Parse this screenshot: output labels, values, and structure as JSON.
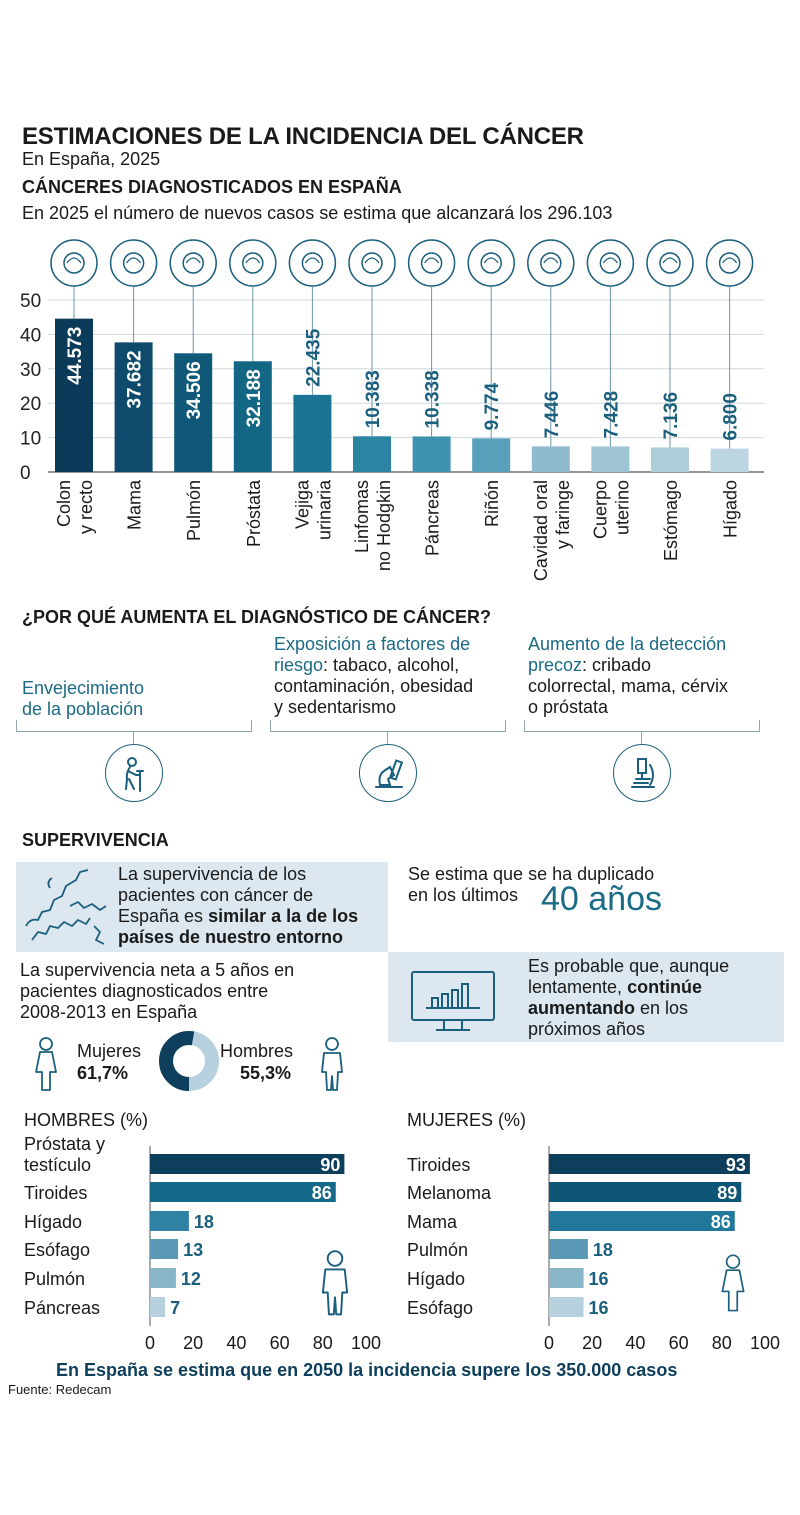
{
  "header": {
    "title": "ESTIMACIONES DE LA INCIDENCIA DEL CÁNCER",
    "subtitle": "En España, 2025",
    "section1_title": "CÁNCERES DIAGNOSTICADOS EN ESPAÑA",
    "section1_intro": "En 2025 el número de nuevos casos se estima que alcanzará los 296.103"
  },
  "chart_data": [
    {
      "type": "bar",
      "categories": [
        "Colon y recto",
        "Mama",
        "Pulmón",
        "Próstata",
        "Vejiga urinaria",
        "Linfomas no Hodgkin",
        "Páncreas",
        "Riñón",
        "Cavidad oral y faringe",
        "Cuerpo uterino",
        "Estómago",
        "Hígado"
      ],
      "category_lines": [
        [
          "Colon",
          "y recto"
        ],
        [
          "Mama"
        ],
        [
          "Pulmón"
        ],
        [
          "Próstata"
        ],
        [
          "Vejiga",
          "urinaria"
        ],
        [
          "Linfomas",
          "no Hodgkin"
        ],
        [
          "Páncreas"
        ],
        [
          "Riñón"
        ],
        [
          "Cavidad oral",
          "y faringe"
        ],
        [
          "Cuerpo",
          "uterino"
        ],
        [
          "Estómago"
        ],
        [
          "Hígado"
        ]
      ],
      "values": [
        44.573,
        37.682,
        34.506,
        32.188,
        22.435,
        10.383,
        10.338,
        9.774,
        7.446,
        7.428,
        7.136,
        6.8
      ],
      "value_labels": [
        "44.573",
        "37.682",
        "34.506",
        "32.188",
        "22.435",
        "10.383",
        "10.338",
        "9.774",
        "7.446",
        "7.428",
        "7.136",
        "6.800"
      ],
      "icons": [
        "intestine-icon",
        "breast-icon",
        "lungs-icon",
        "prostate-icon",
        "bladder-icon",
        "lymph-icon",
        "pancreas-icon",
        "kidneys-icon",
        "mouth-icon",
        "uterus-icon",
        "stomach-icon",
        "liver-icon"
      ],
      "colors": [
        "#0a3c5a",
        "#0d4a6b",
        "#0f5877",
        "#136684",
        "#1a7594",
        "#2a84a2",
        "#3e92af",
        "#5aa0bb",
        "#8fb9cd",
        "#9ec3d4",
        "#aecdda",
        "#bcd6e1"
      ],
      "yticks": [
        0,
        10,
        20,
        30,
        40,
        50
      ],
      "ylim": [
        0,
        50
      ],
      "grid": true
    },
    {
      "type": "bar",
      "title": "HOMBRES (%)",
      "categories": [
        "Próstata y testículo",
        "Tiroides",
        "Hígado",
        "Esófago",
        "Pulmón",
        "Páncreas"
      ],
      "category_lines": [
        [
          "Próstata y",
          "testículo"
        ],
        [
          "Tiroides"
        ],
        [
          "Hígado"
        ],
        [
          "Esófago"
        ],
        [
          "Pulmón"
        ],
        [
          "Páncreas"
        ]
      ],
      "values": [
        90,
        86,
        18,
        13,
        12,
        7
      ],
      "colors": [
        "#0d3f5c",
        "#17698a",
        "#2f82a3",
        "#5a99b6",
        "#89b5c9",
        "#b7d0de"
      ],
      "xticks": [
        0,
        20,
        40,
        60,
        80,
        100
      ],
      "xlim": [
        0,
        100
      ]
    },
    {
      "type": "bar",
      "title": "MUJERES (%)",
      "categories": [
        "Tiroides",
        "Melanoma",
        "Mama",
        "Pulmón",
        "Hígado",
        "Esófago"
      ],
      "category_lines": [
        [
          "Tiroides"
        ],
        [
          "Melanoma"
        ],
        [
          "Mama"
        ],
        [
          "Pulmón"
        ],
        [
          "Hígado"
        ],
        [
          "Esófago"
        ]
      ],
      "values": [
        93,
        89,
        86,
        18,
        16,
        16
      ],
      "colors": [
        "#0d3f5c",
        "#0f5575",
        "#21789a",
        "#5a99b6",
        "#89b5c9",
        "#b7d0de"
      ],
      "xticks": [
        0,
        20,
        40,
        60,
        80,
        100
      ],
      "xlim": [
        0,
        100
      ]
    }
  ],
  "reasons": {
    "title": "¿POR QUÉ AUMENTA EL DIAGNÓSTICO DE CÁNCER?",
    "items": [
      {
        "heading": "Envejecimiento de la población",
        "heading_l1": "Envejecimiento",
        "heading_l2": "de la población",
        "icon": "elderly-person-icon"
      },
      {
        "heading_l1": "Exposición a factores de",
        "heading_l2": "riesgo",
        "text_l2": ": tabaco, alcohol,",
        "text_l3": "contaminación, obesidad",
        "text_l4": "y sedentarismo",
        "icon": "risk-factors-icon"
      },
      {
        "heading_l1": "Aumento de la detección",
        "heading_l2": "precoz",
        "text_l2": ": cribado",
        "text_l3": "colorrectal, mama, cérvix",
        "text_l4": "o próstata",
        "icon": "microscope-icon"
      }
    ]
  },
  "survival": {
    "title": "SUPERVIVENCIA",
    "box1_l1": "La supervivencia de los",
    "box1_l2": "pacientes con cáncer de",
    "box1_l3a": "España es ",
    "box1_l3b": "similar a la de los",
    "box1_l4": "países de nuestro entorno",
    "dup_l1": "Se estima que se ha duplicado",
    "dup_l2": "en los últimos",
    "dup_big": "40 años",
    "net_l1": "La supervivencia neta a 5 años en",
    "net_l2": "pacientes diagnosticados entre",
    "net_l3": "2008-2013 en España",
    "women_label": "Mujeres",
    "women_value": "61,7%",
    "men_label": "Hombres",
    "men_value": "55,3%",
    "women_pct": 61.7,
    "men_pct": 55.3,
    "trend_l1": "Es probable que, aunque",
    "trend_l2a": "lentamente, ",
    "trend_l2b": "continúe",
    "trend_l3a": "aumentando",
    "trend_l3b": " en los",
    "trend_l4": "próximos años"
  },
  "footer": {
    "conclusion": "En España se estima que en 2050 la incidencia supere los 350.000 casos",
    "source": "Fuente: Redecam"
  }
}
